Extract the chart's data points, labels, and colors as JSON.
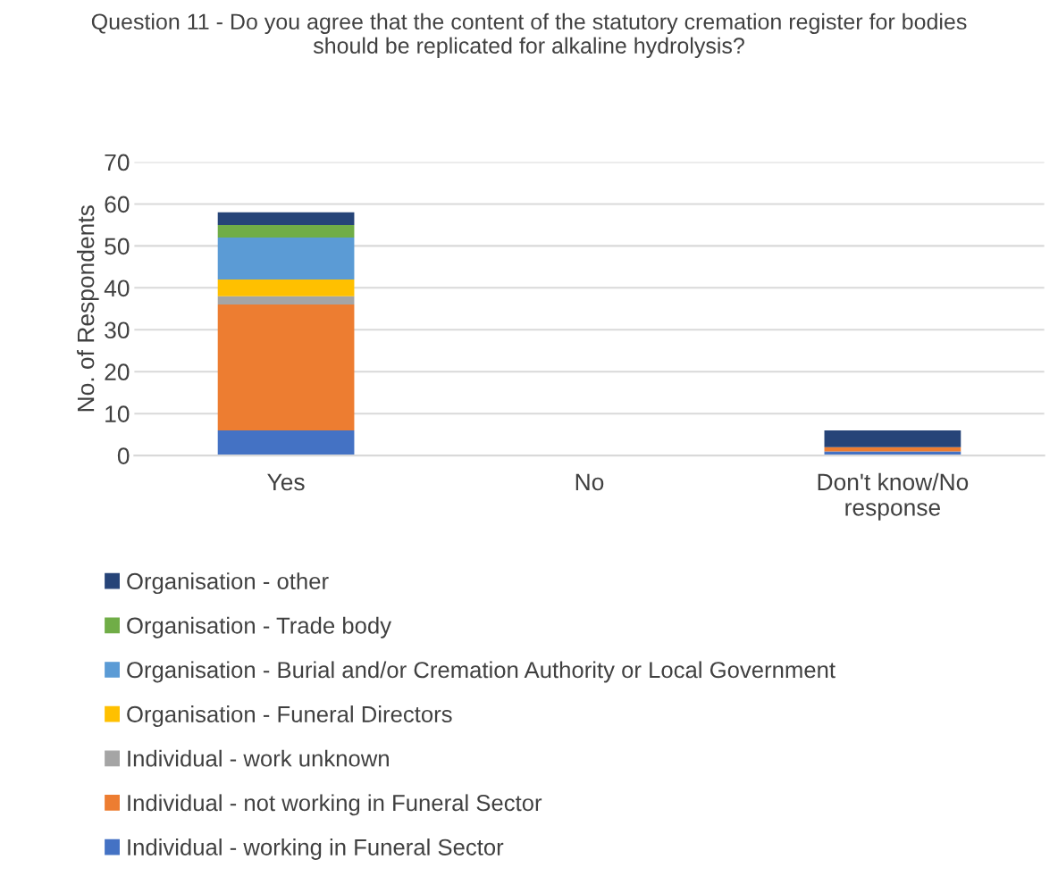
{
  "chart_data": {
    "type": "bar",
    "stacked": true,
    "title": "Question 11 - Do you agree that the content of the statutory cremation register for bodies should be replicated for alkaline hydrolysis?",
    "ylabel": "No. of Respondents",
    "categories": [
      "Yes",
      "No",
      "Don't know/No response"
    ],
    "series": [
      {
        "name": "Individual - working in Funeral Sector",
        "color": "#4472c4",
        "values": [
          6,
          0,
          1
        ]
      },
      {
        "name": "Individual - not working in Funeral Sector",
        "color": "#ed7d31",
        "values": [
          30,
          0,
          1
        ]
      },
      {
        "name": "Individual - work unknown",
        "color": "#a5a5a5",
        "values": [
          2,
          0,
          0
        ]
      },
      {
        "name": "Organisation - Funeral Directors",
        "color": "#ffc000",
        "values": [
          4,
          0,
          0
        ]
      },
      {
        "name": "Organisation - Burial and/or Cremation Authority or Local Government",
        "color": "#5b9bd5",
        "values": [
          10,
          0,
          0
        ]
      },
      {
        "name": "Organisation - Trade body",
        "color": "#70ad47",
        "values": [
          3,
          0,
          0
        ]
      },
      {
        "name": "Organisation - other",
        "color": "#264478",
        "values": [
          3,
          0,
          4
        ]
      }
    ],
    "ylim": [
      0,
      70
    ],
    "yticks": [
      0,
      10,
      20,
      30,
      40,
      50,
      60,
      70
    ],
    "grid": "y",
    "legend": "bottom"
  }
}
